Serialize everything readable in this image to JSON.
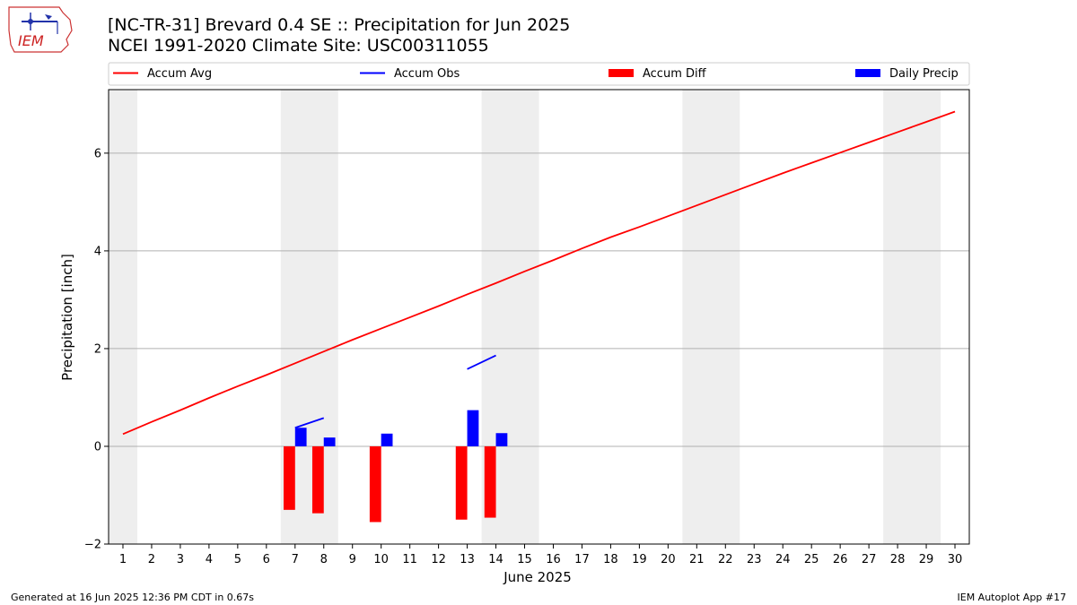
{
  "header": {
    "title_line1": "[NC-TR-31] Brevard 0.4 SE :: Precipitation for Jun 2025",
    "title_line2": "NCEI 1991-2020 Climate Site: USC00311055",
    "logo_text": "IEM"
  },
  "footer": {
    "generated": "Generated at 16 Jun 2025 12:36 PM CDT in 0.67s",
    "app": "IEM Autoplot App #17"
  },
  "chart_data": {
    "type": "bar",
    "xlabel": "June 2025",
    "ylabel": "Precipitation [inch]",
    "xlim": [
      0.5,
      30.5
    ],
    "ylim": [
      -2.0,
      7.3
    ],
    "yticks": [
      -2,
      0,
      2,
      4,
      6
    ],
    "xticks": [
      1,
      2,
      3,
      4,
      5,
      6,
      7,
      8,
      9,
      10,
      11,
      12,
      13,
      14,
      15,
      16,
      17,
      18,
      19,
      20,
      21,
      22,
      23,
      24,
      25,
      26,
      27,
      28,
      29,
      30
    ],
    "grid": "horizontal",
    "legend_placement": "top",
    "weekend_shading": [
      [
        0.5,
        1.5
      ],
      [
        6.5,
        8.5
      ],
      [
        13.5,
        15.5
      ],
      [
        20.5,
        22.5
      ],
      [
        27.5,
        29.5
      ]
    ],
    "series": [
      {
        "name": "Accum Avg",
        "type": "line",
        "color": "#ff0000",
        "x": [
          1,
          2,
          3,
          4,
          5,
          6,
          7,
          8,
          9,
          10,
          11,
          12,
          13,
          14,
          15,
          16,
          17,
          18,
          19,
          20,
          21,
          22,
          23,
          24,
          25,
          26,
          27,
          28,
          29,
          30
        ],
        "values": [
          0.25,
          0.5,
          0.74,
          0.99,
          1.23,
          1.46,
          1.7,
          1.94,
          2.18,
          2.41,
          2.64,
          2.87,
          3.11,
          3.34,
          3.58,
          3.81,
          4.05,
          4.28,
          4.49,
          4.71,
          4.93,
          5.15,
          5.37,
          5.59,
          5.8,
          6.01,
          6.22,
          6.43,
          6.64,
          6.85
        ]
      },
      {
        "name": "Accum Obs",
        "type": "line",
        "color": "#0000ff",
        "segments": [
          {
            "x": [
              7,
              8
            ],
            "values": [
              0.38,
              0.58
            ]
          },
          {
            "x": [
              13,
              14
            ],
            "values": [
              1.58,
              1.86
            ]
          }
        ]
      },
      {
        "name": "Accum Diff",
        "type": "bar",
        "color": "#ff0000",
        "x": [
          7,
          8,
          10,
          13,
          14
        ],
        "values": [
          -1.3,
          -1.37,
          -1.55,
          -1.5,
          -1.46
        ]
      },
      {
        "name": "Daily Precip",
        "type": "bar",
        "color": "#0000ff",
        "x": [
          7,
          8,
          10,
          13,
          14
        ],
        "values": [
          0.38,
          0.18,
          0.26,
          0.74,
          0.27
        ]
      }
    ]
  }
}
